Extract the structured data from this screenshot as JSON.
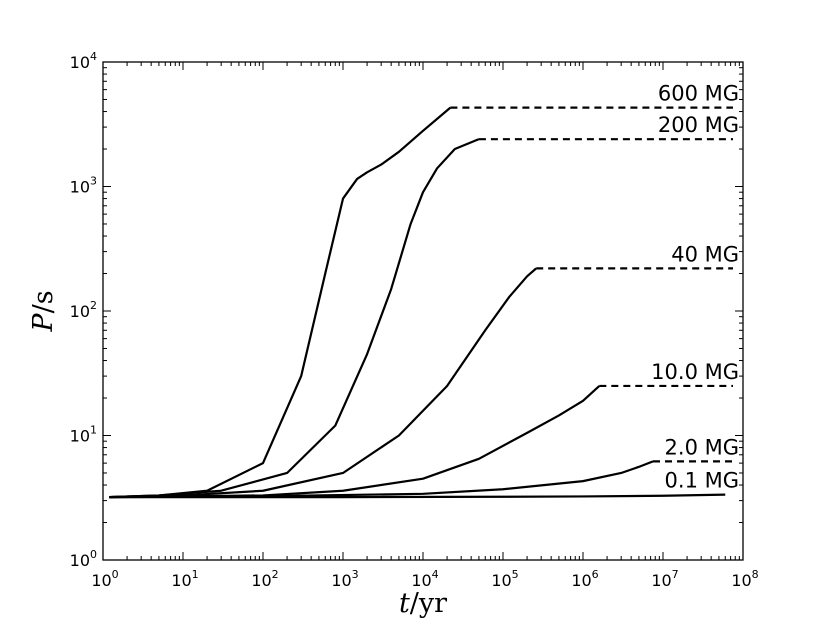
{
  "chart_data": {
    "type": "line",
    "xlabel_var": "t",
    "xlabel_unit": "/yr",
    "ylabel_var": "P",
    "ylabel_unit": "/s",
    "xscale": "log",
    "yscale": "log",
    "xlim": [
      1,
      100000000
    ],
    "ylim": [
      1,
      10000
    ],
    "grid": false,
    "xticks": [
      {
        "base": "10",
        "exp": "0",
        "value": 1
      },
      {
        "base": "10",
        "exp": "1",
        "value": 10
      },
      {
        "base": "10",
        "exp": "2",
        "value": 100
      },
      {
        "base": "10",
        "exp": "3",
        "value": 1000
      },
      {
        "base": "10",
        "exp": "4",
        "value": 10000
      },
      {
        "base": "10",
        "exp": "5",
        "value": 100000
      },
      {
        "base": "10",
        "exp": "6",
        "value": 1000000
      },
      {
        "base": "10",
        "exp": "7",
        "value": 10000000
      },
      {
        "base": "10",
        "exp": "8",
        "value": 100000000
      }
    ],
    "yticks": [
      {
        "base": "10",
        "exp": "0",
        "value": 1
      },
      {
        "base": "10",
        "exp": "1",
        "value": 10
      },
      {
        "base": "10",
        "exp": "2",
        "value": 100
      },
      {
        "base": "10",
        "exp": "3",
        "value": 1000
      },
      {
        "base": "10",
        "exp": "4",
        "value": 10000
      }
    ],
    "series": [
      {
        "name": "600 MG",
        "x": [
          1.2,
          5,
          20,
          100,
          300,
          600,
          1000,
          1500,
          2000,
          3000,
          5000,
          10000,
          22000
        ],
        "y": [
          3.2,
          3.3,
          3.6,
          6.0,
          30,
          200,
          800,
          1150,
          1300,
          1500,
          1900,
          2800,
          4300
        ],
        "plateau": {
          "x_end": 75000000,
          "y": 4300
        }
      },
      {
        "name": "200 MG",
        "x": [
          1.2,
          5,
          30,
          200,
          800,
          2000,
          4000,
          7000,
          10000,
          15000,
          25000,
          50000
        ],
        "y": [
          3.2,
          3.3,
          3.6,
          5.0,
          12,
          45,
          150,
          500,
          900,
          1400,
          2000,
          2400
        ],
        "plateau": {
          "x_end": 75000000,
          "y": 2400
        }
      },
      {
        "name": "40 MG",
        "x": [
          1.2,
          10,
          100,
          1000,
          5000,
          20000,
          60000,
          120000,
          200000,
          260000
        ],
        "y": [
          3.2,
          3.3,
          3.6,
          5.0,
          10,
          25,
          70,
          130,
          190,
          220
        ],
        "plateau": {
          "x_end": 75000000,
          "y": 220
        }
      },
      {
        "name": "10.0 MG",
        "x": [
          1.2,
          100,
          1000,
          10000,
          50000,
          200000,
          500000,
          1000000,
          1600000
        ],
        "y": [
          3.2,
          3.3,
          3.6,
          4.5,
          6.5,
          10.5,
          14.5,
          19,
          25
        ],
        "plateau": {
          "x_end": 75000000,
          "y": 25
        }
      },
      {
        "name": "2.0 MG",
        "x": [
          1.2,
          100,
          10000,
          100000,
          1000000,
          3000000,
          5000000,
          7500000
        ],
        "y": [
          3.2,
          3.25,
          3.4,
          3.7,
          4.3,
          5.0,
          5.6,
          6.2
        ],
        "plateau": {
          "x_end": 75000000,
          "y": 6.2
        }
      },
      {
        "name": "0.1 MG",
        "x": [
          1.2,
          1000,
          100000,
          1000000,
          10000000,
          60000000
        ],
        "y": [
          3.2,
          3.2,
          3.22,
          3.24,
          3.28,
          3.35
        ],
        "plateau": null
      }
    ]
  }
}
